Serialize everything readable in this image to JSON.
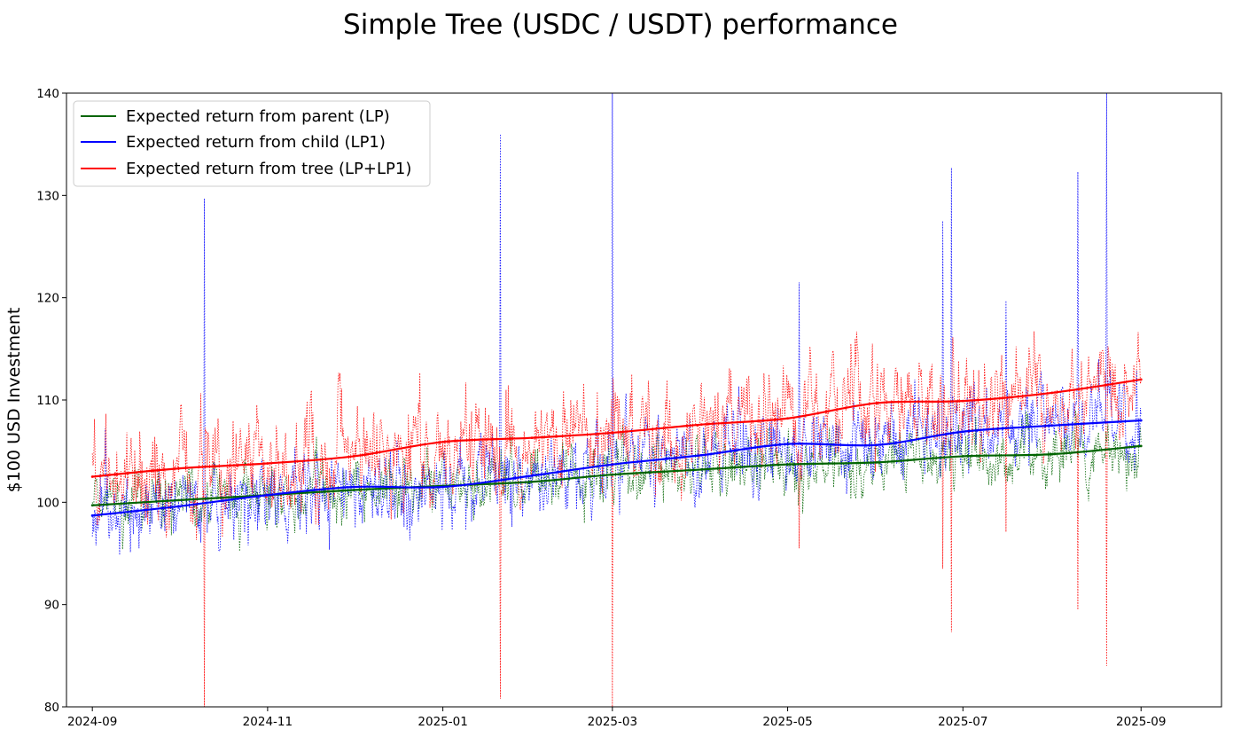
{
  "chart_data": {
    "type": "line",
    "title": "Simple Tree (USDC / USDT) performance",
    "xlabel": "",
    "ylabel": "$100 USD Investment",
    "x_range": [
      "2024-08-23",
      "2025-09-29"
    ],
    "ylim": [
      80,
      140
    ],
    "x_ticks": [
      "2024-09",
      "2024-11",
      "2025-01",
      "2025-03",
      "2025-05",
      "2025-07",
      "2025-09"
    ],
    "y_ticks": [
      80,
      90,
      100,
      110,
      120,
      130,
      140
    ],
    "grid": false,
    "legend_position": "top-left",
    "colors": {
      "parent": "#006400",
      "child": "#0000ff",
      "tree": "#ff0000",
      "axis": "#000000"
    },
    "series": [
      {
        "name": "Expected return from parent (LP)",
        "key": "parent",
        "style": "solid smoothed line with noisy dotted daily values",
        "x": [
          "2024-09-01",
          "2024-10-01",
          "2024-11-01",
          "2024-12-01",
          "2025-01-01",
          "2025-02-01",
          "2025-03-01",
          "2025-04-01",
          "2025-05-01",
          "2025-06-01",
          "2025-07-01",
          "2025-08-01",
          "2025-09-01"
        ],
        "values": [
          99.7,
          100.2,
          100.7,
          101.2,
          101.6,
          102.0,
          102.7,
          103.2,
          103.7,
          103.9,
          104.5,
          104.7,
          105.5
        ]
      },
      {
        "name": "Expected return from child (LP1)",
        "key": "child",
        "style": "solid smoothed line with noisy dotted daily values",
        "x": [
          "2024-09-01",
          "2024-10-01",
          "2024-11-01",
          "2024-12-01",
          "2025-01-01",
          "2025-02-01",
          "2025-03-01",
          "2025-04-01",
          "2025-05-01",
          "2025-06-01",
          "2025-07-01",
          "2025-08-01",
          "2025-09-01"
        ],
        "values": [
          98.7,
          99.6,
          100.7,
          101.5,
          101.5,
          102.6,
          103.7,
          104.6,
          105.7,
          105.6,
          106.9,
          107.5,
          108.0
        ],
        "spikes": [
          {
            "date": "2024-10-10",
            "value": 129.7
          },
          {
            "date": "2025-01-21",
            "value": 136.0
          },
          {
            "date": "2025-03-01",
            "value": 140.0
          },
          {
            "date": "2025-05-05",
            "value": 121.5
          },
          {
            "date": "2025-06-24",
            "value": 127.5
          },
          {
            "date": "2025-06-27",
            "value": 132.7
          },
          {
            "date": "2025-07-16",
            "value": 119.7
          },
          {
            "date": "2025-08-10",
            "value": 132.3
          },
          {
            "date": "2025-08-20",
            "value": 140.0
          }
        ]
      },
      {
        "name": "Expected return from tree (LP+LP1)",
        "key": "tree",
        "style": "solid smoothed line with noisy dotted daily values",
        "x": [
          "2024-09-01",
          "2024-10-01",
          "2024-11-01",
          "2024-12-01",
          "2025-01-01",
          "2025-02-01",
          "2025-03-01",
          "2025-04-01",
          "2025-05-01",
          "2025-06-01",
          "2025-07-01",
          "2025-08-01",
          "2025-09-01"
        ],
        "values": [
          102.5,
          103.3,
          103.8,
          104.5,
          105.9,
          106.3,
          106.8,
          107.6,
          108.2,
          109.7,
          109.9,
          110.7,
          112.0
        ],
        "spikes": [
          {
            "date": "2024-10-10",
            "value": 80.0
          },
          {
            "date": "2025-01-21",
            "value": 80.8
          },
          {
            "date": "2025-03-01",
            "value": 80.0
          },
          {
            "date": "2025-05-05",
            "value": 95.5
          },
          {
            "date": "2025-06-24",
            "value": 93.5
          },
          {
            "date": "2025-06-27",
            "value": 87.3
          },
          {
            "date": "2025-07-16",
            "value": 97.1
          },
          {
            "date": "2025-08-10",
            "value": 89.5
          },
          {
            "date": "2025-08-20",
            "value": 84.0
          }
        ]
      }
    ]
  }
}
